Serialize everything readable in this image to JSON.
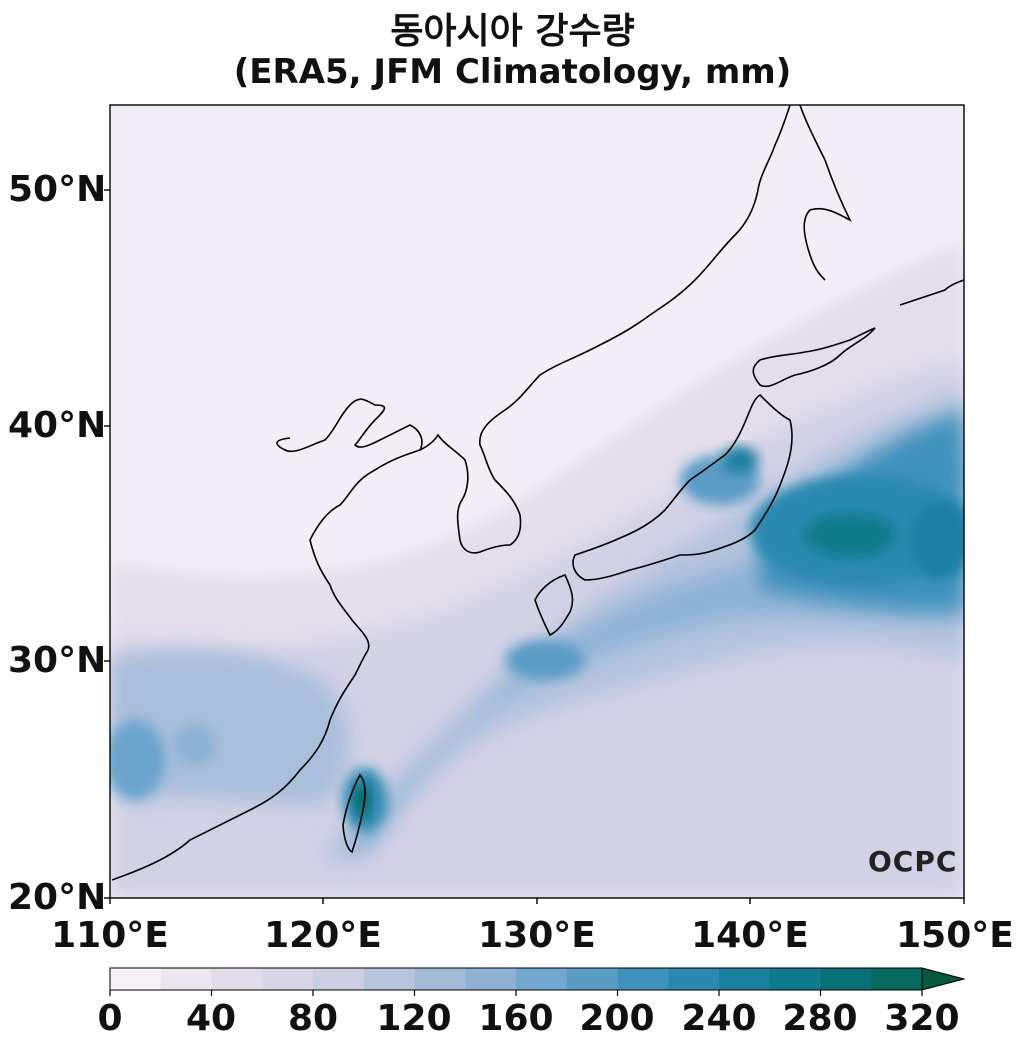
{
  "title": "동아시아 강수량",
  "subtitle": "(ERA5, JFM Climatology, mm)",
  "logo": "OCPC",
  "y_ticks": [
    "50°N",
    "40°N",
    "30°N",
    "20°N"
  ],
  "x_ticks": [
    "110°E",
    "120°E",
    "130°E",
    "140°E",
    "150°E"
  ],
  "colorbar": {
    "tick_labels": [
      "0",
      "40",
      "80",
      "120",
      "160",
      "200",
      "240",
      "280",
      "320"
    ],
    "levels": [
      0,
      20,
      40,
      60,
      80,
      100,
      120,
      140,
      160,
      180,
      200,
      220,
      240,
      260,
      280,
      300,
      320
    ],
    "colors": [
      "#f7f0f7",
      "#ede6f0",
      "#e3dcea",
      "#d9d6e8",
      "#cccfe4",
      "#b9c5df",
      "#a5bcd9",
      "#8fb2d4",
      "#73a7cf",
      "#5b9cc7",
      "#3f92bd",
      "#2a89b0",
      "#1a80a0",
      "#0e7a8a",
      "#087077",
      "#066a61"
    ],
    "extend_color": "#04583d"
  },
  "map": {
    "region": {
      "lon_min": 110,
      "lon_max": 150,
      "lat_min": 20,
      "lat_max": 53.5
    },
    "coastline_color": "#000000",
    "background_color": "#efe9f3"
  }
}
